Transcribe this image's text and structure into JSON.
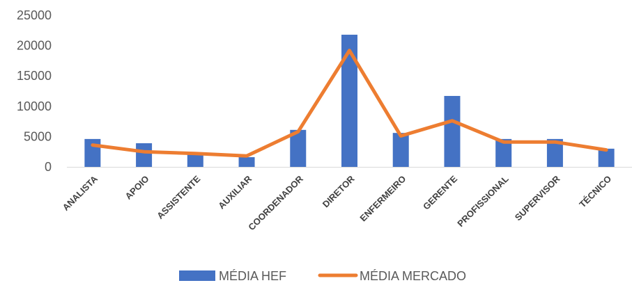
{
  "chart_data": {
    "type": "bar",
    "title": "",
    "xlabel": "",
    "ylabel": "",
    "ylim": [
      0,
      25000
    ],
    "yticks": [
      0,
      5000,
      10000,
      15000,
      20000,
      25000
    ],
    "grid": false,
    "legend_position": "bottom",
    "categories": [
      "ANALISTA",
      "APOIO",
      "ASSISTENTE",
      "AUXILIAR",
      "COORDENADOR",
      "DIRETOR",
      "ENFERMEIRO",
      "GERENTE",
      "PROFISSIONAL",
      "SUPERVISOR",
      "TÉCNICO"
    ],
    "series": [
      {
        "name": "MÉDIA HEF",
        "type": "bar",
        "color": "#4472C4",
        "values": [
          4600,
          3900,
          2200,
          1600,
          6100,
          21800,
          5600,
          11700,
          4600,
          4600,
          3000
        ]
      },
      {
        "name": "MÉDIA MERCADO",
        "type": "line",
        "color": "#ED7D31",
        "values": [
          3600,
          2500,
          2200,
          1800,
          5800,
          19200,
          5100,
          7600,
          4100,
          4100,
          2800
        ]
      }
    ]
  }
}
